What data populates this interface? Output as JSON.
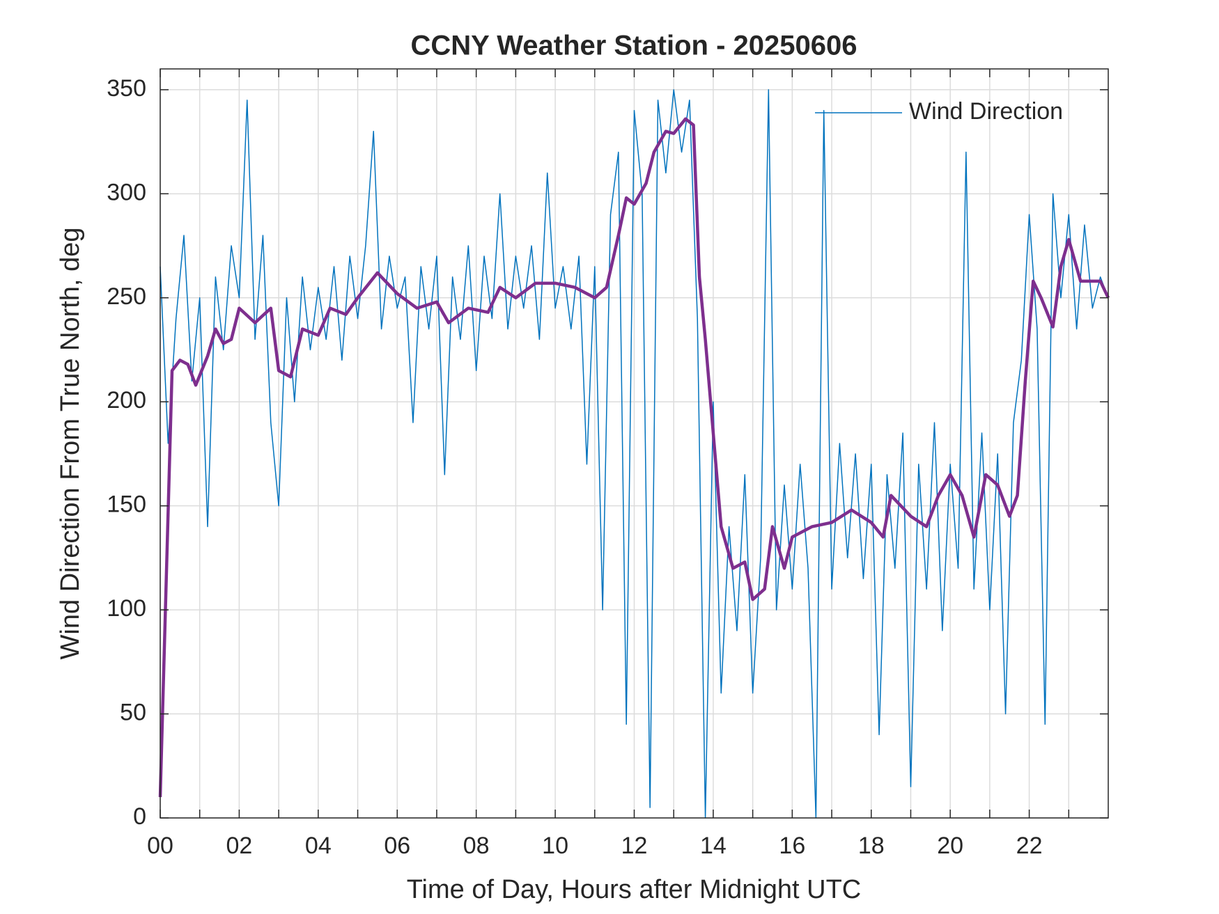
{
  "chart_data": {
    "type": "line",
    "title": "CCNY Weather Station - 20250606",
    "xlabel": "Time of Day, Hours after Midnight UTC",
    "ylabel": "Wind Direction From True North, deg",
    "xlim": [
      0,
      24
    ],
    "ylim": [
      0,
      360
    ],
    "xticks": [
      {
        "value": 0,
        "label": "00"
      },
      {
        "value": 2,
        "label": "02"
      },
      {
        "value": 4,
        "label": "04"
      },
      {
        "value": 6,
        "label": "06"
      },
      {
        "value": 8,
        "label": "08"
      },
      {
        "value": 10,
        "label": "10"
      },
      {
        "value": 12,
        "label": "12"
      },
      {
        "value": 14,
        "label": "14"
      },
      {
        "value": 16,
        "label": "16"
      },
      {
        "value": 18,
        "label": "18"
      },
      {
        "value": 20,
        "label": "20"
      },
      {
        "value": 22,
        "label": "22"
      }
    ],
    "xminorticks": [
      1,
      3,
      5,
      7,
      9,
      11,
      13,
      15,
      17,
      19,
      21,
      23
    ],
    "yticks": [
      0,
      50,
      100,
      150,
      200,
      250,
      300,
      350
    ],
    "grid": true,
    "legend": "upper right",
    "series": [
      {
        "name": "Wind Direction",
        "color": "#0072bd",
        "width": 1.5,
        "x": [
          0,
          0.2,
          0.4,
          0.6,
          0.8,
          1,
          1.2,
          1.4,
          1.6,
          1.8,
          2,
          2.2,
          2.4,
          2.6,
          2.8,
          3,
          3.2,
          3.4,
          3.6,
          3.8,
          4,
          4.2,
          4.4,
          4.6,
          4.8,
          5,
          5.2,
          5.4,
          5.6,
          5.8,
          6,
          6.2,
          6.4,
          6.6,
          6.8,
          7,
          7.2,
          7.4,
          7.6,
          7.8,
          8,
          8.2,
          8.4,
          8.6,
          8.8,
          9,
          9.2,
          9.4,
          9.6,
          9.8,
          10,
          10.2,
          10.4,
          10.6,
          10.8,
          11,
          11.2,
          11.4,
          11.6,
          11.8,
          12,
          12.2,
          12.4,
          12.6,
          12.8,
          13,
          13.2,
          13.4,
          13.6,
          13.8,
          14,
          14.2,
          14.4,
          14.6,
          14.8,
          15,
          15.2,
          15.4,
          15.6,
          15.8,
          16,
          16.2,
          16.4,
          16.6,
          16.8,
          17,
          17.2,
          17.4,
          17.6,
          17.8,
          18,
          18.2,
          18.4,
          18.6,
          18.8,
          19,
          19.2,
          19.4,
          19.6,
          19.8,
          20,
          20.2,
          20.4,
          20.6,
          20.8,
          21,
          21.2,
          21.4,
          21.6,
          21.8,
          22,
          22.2,
          22.4,
          22.6,
          22.8,
          23,
          23.2,
          23.4,
          23.6,
          23.8,
          24
        ],
        "values": [
          265,
          180,
          240,
          280,
          210,
          250,
          140,
          260,
          225,
          275,
          250,
          345,
          230,
          280,
          190,
          150,
          250,
          200,
          260,
          225,
          255,
          230,
          265,
          220,
          270,
          240,
          275,
          330,
          235,
          270,
          245,
          260,
          190,
          265,
          235,
          270,
          165,
          260,
          230,
          275,
          215,
          270,
          240,
          300,
          235,
          270,
          245,
          275,
          230,
          310,
          245,
          265,
          235,
          270,
          170,
          265,
          100,
          290,
          320,
          45,
          340,
          300,
          5,
          345,
          310,
          350,
          320,
          345,
          240,
          0,
          200,
          60,
          140,
          90,
          165,
          60,
          125,
          350,
          100,
          160,
          110,
          170,
          120,
          0,
          340,
          110,
          180,
          125,
          175,
          115,
          170,
          40,
          165,
          120,
          185,
          15,
          170,
          110,
          190,
          90,
          170,
          120,
          320,
          110,
          185,
          100,
          175,
          50,
          190,
          220,
          290,
          235,
          45,
          300,
          250,
          290,
          235,
          285,
          245,
          260,
          250
        ]
      },
      {
        "color": "#7e2f8e",
        "width": 4.5,
        "x": [
          0,
          0.3,
          0.5,
          0.7,
          0.9,
          1.2,
          1.4,
          1.6,
          1.8,
          2,
          2.4,
          2.8,
          3,
          3.3,
          3.6,
          4,
          4.3,
          4.7,
          5,
          5.5,
          6,
          6.5,
          7,
          7.3,
          7.8,
          8.3,
          8.6,
          9,
          9.5,
          10,
          10.5,
          11,
          11.3,
          11.6,
          11.8,
          12,
          12.3,
          12.5,
          12.8,
          13,
          13.3,
          13.5,
          13.65,
          13.8,
          14,
          14.2,
          14.5,
          14.8,
          15,
          15.3,
          15.5,
          15.8,
          16,
          16.5,
          17,
          17.5,
          18,
          18.3,
          18.5,
          19,
          19.4,
          19.7,
          20,
          20.3,
          20.6,
          20.9,
          21.2,
          21.5,
          21.7,
          21.9,
          22.1,
          22.3,
          22.6,
          22.8,
          23,
          23.3,
          23.6,
          23.8,
          24
        ],
        "values": [
          10,
          215,
          220,
          218,
          208,
          222,
          235,
          228,
          230,
          245,
          238,
          245,
          215,
          212,
          235,
          232,
          245,
          242,
          250,
          262,
          252,
          245,
          248,
          238,
          245,
          243,
          255,
          250,
          257,
          257,
          255,
          250,
          255,
          280,
          298,
          295,
          305,
          320,
          330,
          329,
          336,
          333,
          260,
          230,
          185,
          140,
          120,
          123,
          105,
          110,
          140,
          120,
          135,
          140,
          142,
          148,
          142,
          135,
          155,
          145,
          140,
          155,
          165,
          155,
          135,
          165,
          160,
          145,
          155,
          210,
          258,
          250,
          236,
          265,
          278,
          258,
          258,
          258,
          250
        ]
      }
    ]
  }
}
